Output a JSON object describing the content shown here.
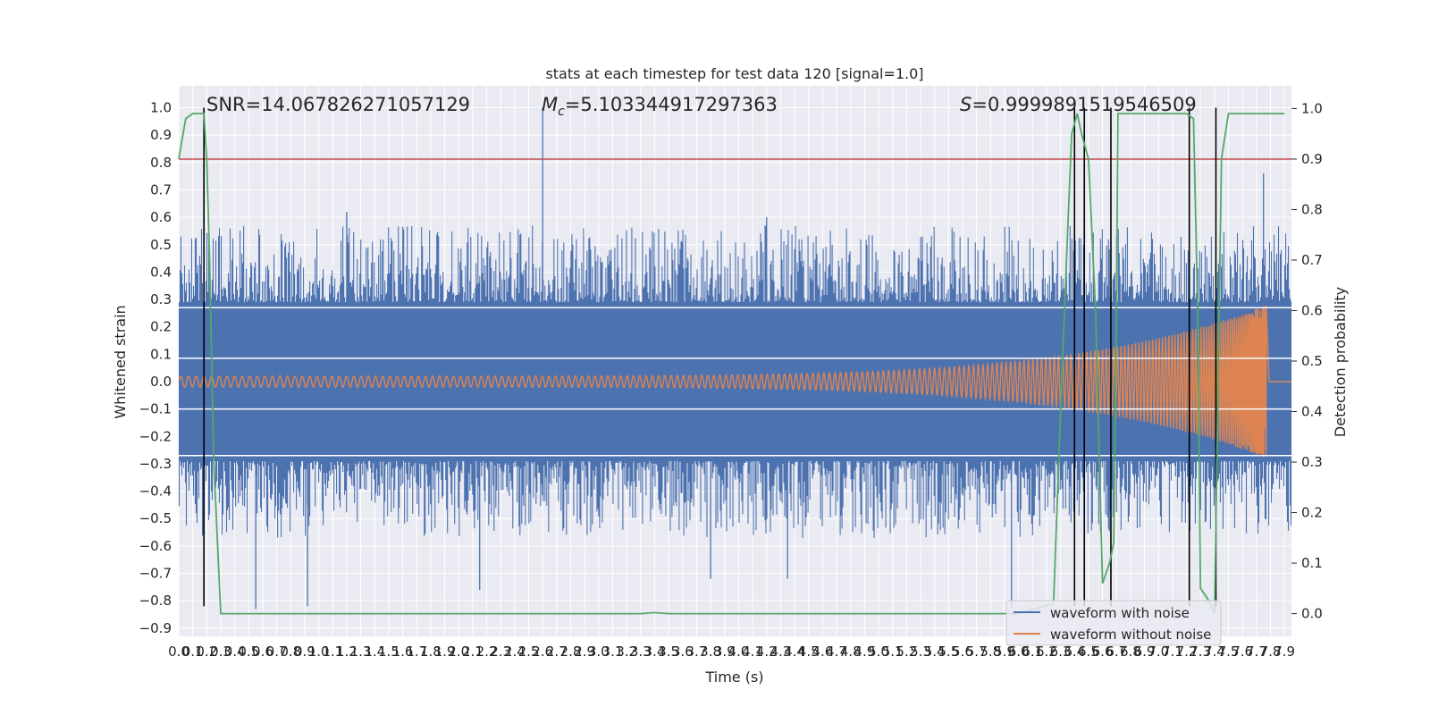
{
  "chart_data": {
    "type": "line",
    "title": "stats at each timestep for test data 120 [signal=1.0]",
    "xlabel": "Time (s)",
    "ylabel": "Whitened strain",
    "y2label": "Detection probability",
    "xlim": [
      0.0,
      7.95
    ],
    "ylim": [
      -0.93,
      1.08
    ],
    "y2lim": [
      -0.045,
      1.045
    ],
    "x_ticks": [
      "0.0",
      "0.1",
      "0.2",
      "0.3",
      "0.4",
      "0.5",
      "0.6",
      "0.7",
      "0.8",
      "0.9",
      "1.0",
      "1.1",
      "1.2",
      "1.3",
      "1.4",
      "1.5",
      "1.6",
      "1.7",
      "1.8",
      "1.9",
      "2.0",
      "2.1",
      "2.2",
      "2.3",
      "2.4",
      "2.5",
      "2.6",
      "2.7",
      "2.8",
      "2.9",
      "3.0",
      "3.1",
      "3.2",
      "3.3",
      "3.4",
      "3.5",
      "3.6",
      "3.7",
      "3.8",
      "3.9",
      "4.0",
      "4.1",
      "4.2",
      "4.3",
      "4.4",
      "4.5",
      "4.6",
      "4.7",
      "4.8",
      "4.9",
      "5.0",
      "5.1",
      "5.2",
      "5.3",
      "5.4",
      "5.5",
      "5.6",
      "5.7",
      "5.8",
      "5.9",
      "6.0",
      "6.1",
      "6.2",
      "6.3",
      "6.4",
      "6.5",
      "6.6",
      "6.7",
      "6.8",
      "6.9",
      "7.0",
      "7.1",
      "7.2",
      "7.3",
      "7.4",
      "7.5",
      "7.6",
      "7.7",
      "7.8",
      "7.9"
    ],
    "y_ticks": [
      "−0.9",
      "−0.8",
      "−0.7",
      "−0.6",
      "−0.5",
      "−0.4",
      "−0.3",
      "−0.2",
      "−0.1",
      "0.0",
      "0.1",
      "0.2",
      "0.3",
      "0.4",
      "0.5",
      "0.6",
      "0.7",
      "0.8",
      "0.9",
      "1.0"
    ],
    "y2_ticks": [
      "0.0",
      "0.1",
      "0.2",
      "0.3",
      "0.4",
      "0.5",
      "0.6",
      "0.7",
      "0.8",
      "0.9",
      "1.0"
    ],
    "annotations": {
      "snr": "SNR=14.067826271057129",
      "mc_symbol": "M",
      "mc_sub": "c",
      "mc_value": "=5.103344917297363",
      "s_symbol": "S",
      "s_value": "=0.9999891519546509"
    },
    "series": [
      {
        "name": "waveform with noise",
        "color": "#4c72b0",
        "noise_envelope": 0.27,
        "noise_peak_typical": 0.55,
        "spikes": [
          [
            2.6,
            1.0
          ],
          [
            1.2,
            0.62
          ],
          [
            4.2,
            0.6
          ],
          [
            7.75,
            0.76
          ],
          [
            0.55,
            -0.83
          ],
          [
            0.92,
            -0.82
          ],
          [
            2.15,
            -0.76
          ],
          [
            5.95,
            -0.83
          ],
          [
            3.8,
            -0.72
          ],
          [
            4.35,
            -0.72
          ]
        ]
      },
      {
        "name": "waveform without noise",
        "color": "#dd8452",
        "amplitude_start": 0.02,
        "amplitude_peak": 0.28,
        "peak_time": 7.77,
        "end_time": 7.79
      },
      {
        "name": "detection probability",
        "color": "#55a868",
        "axis": "right",
        "x": [
          0.0,
          0.05,
          0.1,
          0.15,
          0.18,
          0.2,
          0.22,
          0.25,
          0.3,
          0.4,
          0.6,
          0.8,
          1.5,
          2.5,
          3.3,
          3.4,
          3.5,
          4.0,
          5.0,
          6.0,
          6.25,
          6.3,
          6.35,
          6.38,
          6.42,
          6.45,
          6.5,
          6.55,
          6.6,
          6.65,
          6.68,
          6.7,
          6.71,
          6.8,
          7.0,
          7.2,
          7.25,
          7.28,
          7.3,
          7.35,
          7.4,
          7.45,
          7.5,
          7.55,
          7.6,
          7.7,
          7.8,
          7.9
        ],
        "y": [
          0.9,
          0.98,
          0.99,
          0.99,
          0.99,
          0.9,
          0.7,
          0.3,
          0.0,
          0.0,
          0.0,
          0.0,
          0.0,
          0.0,
          0.0,
          0.002,
          0.0,
          0.0,
          0.0,
          0.0,
          0.02,
          0.4,
          0.75,
          0.95,
          0.99,
          0.95,
          0.9,
          0.6,
          0.06,
          0.1,
          0.14,
          0.6,
          0.99,
          0.99,
          0.99,
          0.99,
          0.98,
          0.6,
          0.05,
          0.03,
          0.0,
          0.9,
          0.99,
          0.99,
          0.99,
          0.99,
          0.99,
          0.99
        ]
      }
    ],
    "threshold_line": {
      "axis": "right",
      "value": 0.9,
      "color": "#c44e52"
    },
    "white_hlines": [
      0.27,
      0.085,
      -0.1,
      -0.27
    ],
    "vlines": [
      0.18,
      6.4,
      6.47,
      6.66,
      7.22,
      7.41
    ],
    "vlines_range": [
      -0.82,
      1.0
    ],
    "legend": {
      "position": "bottom-right",
      "items": [
        "waveform with noise",
        "waveform without noise"
      ]
    }
  }
}
